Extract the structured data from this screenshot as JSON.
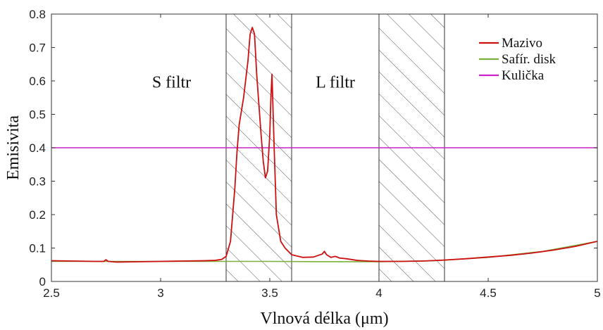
{
  "chart_data": {
    "type": "line",
    "xlabel": "Vlnová délka (μm)",
    "ylabel": "Emisivita",
    "xlim": [
      2.5,
      5.0
    ],
    "ylim": [
      0,
      0.8
    ],
    "xticks": [
      2.5,
      3,
      3.5,
      4,
      4.5,
      5
    ],
    "xtick_labels": [
      "2.5",
      "3",
      "3.5",
      "4",
      "4.5",
      "5"
    ],
    "yticks": [
      0,
      0.1,
      0.2,
      0.3,
      0.4,
      0.5,
      0.6,
      0.7,
      0.8
    ],
    "ytick_labels": [
      "0",
      "0.1",
      "0.2",
      "0.3",
      "0.4",
      "0.5",
      "0.6",
      "0.7",
      "0.8"
    ],
    "grid": false,
    "legend_position": "top-right",
    "series": [
      {
        "name": "Mazivo",
        "color": "#cc1010",
        "x": [
          2.5,
          2.6,
          2.7,
          2.74,
          2.75,
          2.76,
          2.8,
          2.9,
          3.0,
          3.1,
          3.2,
          3.25,
          3.28,
          3.3,
          3.32,
          3.34,
          3.35,
          3.36,
          3.38,
          3.4,
          3.41,
          3.42,
          3.43,
          3.44,
          3.46,
          3.47,
          3.48,
          3.49,
          3.5,
          3.505,
          3.51,
          3.52,
          3.53,
          3.55,
          3.57,
          3.6,
          3.65,
          3.7,
          3.74,
          3.75,
          3.76,
          3.78,
          3.8,
          3.82,
          3.85,
          3.9,
          3.95,
          4.0,
          4.1,
          4.2,
          4.3,
          4.4,
          4.5,
          4.6,
          4.7,
          4.8,
          4.9,
          5.0
        ],
        "y": [
          0.062,
          0.061,
          0.06,
          0.06,
          0.065,
          0.06,
          0.058,
          0.059,
          0.06,
          0.061,
          0.062,
          0.063,
          0.066,
          0.075,
          0.12,
          0.28,
          0.39,
          0.47,
          0.55,
          0.66,
          0.74,
          0.76,
          0.74,
          0.62,
          0.44,
          0.36,
          0.31,
          0.33,
          0.44,
          0.55,
          0.62,
          0.4,
          0.2,
          0.12,
          0.1,
          0.08,
          0.072,
          0.073,
          0.082,
          0.09,
          0.08,
          0.072,
          0.075,
          0.07,
          0.068,
          0.063,
          0.061,
          0.06,
          0.06,
          0.061,
          0.064,
          0.068,
          0.073,
          0.078,
          0.085,
          0.094,
          0.105,
          0.12
        ]
      },
      {
        "name": "Safír. disk",
        "color": "#7ab03a",
        "x": [
          2.5,
          2.75,
          3.0,
          3.25,
          3.5,
          3.75,
          4.0,
          4.25,
          4.5,
          4.75,
          5.0
        ],
        "y": [
          0.06,
          0.06,
          0.06,
          0.06,
          0.06,
          0.059,
          0.059,
          0.062,
          0.072,
          0.09,
          0.12
        ]
      },
      {
        "name": "Kulička",
        "color": "#cc22cc",
        "x": [
          2.5,
          5.0
        ],
        "y": [
          0.4,
          0.4
        ]
      }
    ],
    "bands": [
      {
        "name": "s-filter-band",
        "x0": 3.3,
        "x1": 3.6
      },
      {
        "name": "l-filter-band",
        "x0": 4.0,
        "x1": 4.3
      }
    ],
    "annotations": [
      {
        "text": "S filtr",
        "x": 3.05,
        "y": 0.58
      },
      {
        "text": "L filtr",
        "x": 3.8,
        "y": 0.58
      }
    ]
  }
}
